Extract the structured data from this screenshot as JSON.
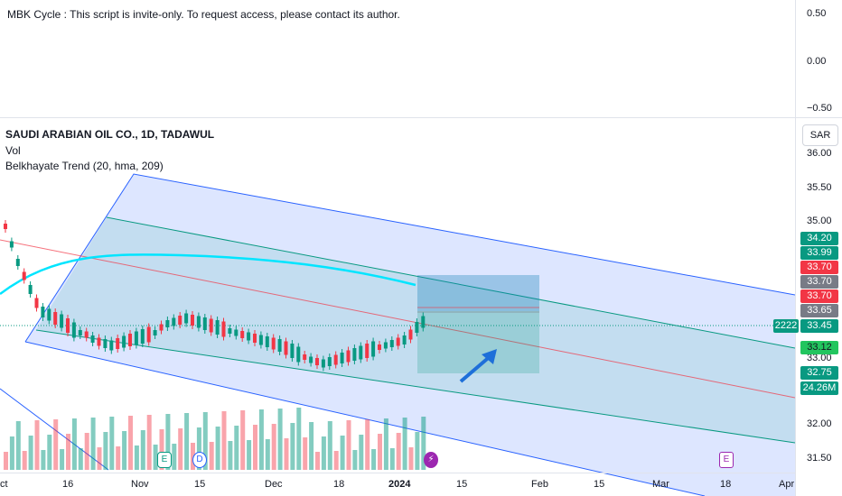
{
  "indicator_pane": {
    "title": "MBK Cycle : This script is invite-only. To request access, please contact its author.",
    "axis": [
      "0.50",
      "0.00",
      "−0.50"
    ]
  },
  "legend": {
    "symbol": "SAUDI ARABIAN OIL CO., 1D, TADAWUL",
    "vol": "Vol",
    "trend": "Belkhayate Trend (20, hma, 209)"
  },
  "currency": "SAR",
  "price_axis": [
    "36.00",
    "35.50",
    "35.00",
    "33.00",
    "32.00",
    "31.50"
  ],
  "price_tags": [
    {
      "value": "34.20",
      "color": "#089981"
    },
    {
      "value": "33.99",
      "color": "#089981"
    },
    {
      "value": "33.70",
      "color": "#f23645"
    },
    {
      "value": "33.70",
      "color": "#787b86"
    },
    {
      "value": "33.70",
      "color": "#f23645"
    },
    {
      "value": "33.65",
      "color": "#787b86"
    },
    {
      "value": "33.45",
      "color": "#089981"
    },
    {
      "value": "33.12",
      "color": "#22c55e"
    },
    {
      "value": "32.75",
      "color": "#089981"
    },
    {
      "value": "24.26M",
      "color": "#089981"
    }
  ],
  "countdown": "2222",
  "x_axis": [
    {
      "label": "ct",
      "bold": false
    },
    {
      "label": "16",
      "bold": false
    },
    {
      "label": "Nov",
      "bold": false
    },
    {
      "label": "15",
      "bold": false
    },
    {
      "label": "Dec",
      "bold": false
    },
    {
      "label": "18",
      "bold": false
    },
    {
      "label": "2024",
      "bold": true
    },
    {
      "label": "15",
      "bold": false
    },
    {
      "label": "Feb",
      "bold": false
    },
    {
      "label": "15",
      "bold": false
    },
    {
      "label": "Mar",
      "bold": false
    },
    {
      "label": "18",
      "bold": false
    },
    {
      "label": "Apr",
      "bold": false
    }
  ],
  "events": [
    {
      "letter": "E",
      "color": "#089981"
    },
    {
      "letter": "D",
      "color": "#2962ff"
    },
    {
      "letter": "⚡",
      "color": "#9c27b0"
    },
    {
      "letter": "E",
      "color": "#9c27b0"
    }
  ],
  "colors": {
    "up": "#089981",
    "down": "#f23645",
    "channel_blue": "#2962ff",
    "channel_fill": "rgba(41,98,255,0.18)",
    "mid_fill": "rgba(8,153,129,0.12)",
    "trend_cyan": "#00e5ff"
  }
}
